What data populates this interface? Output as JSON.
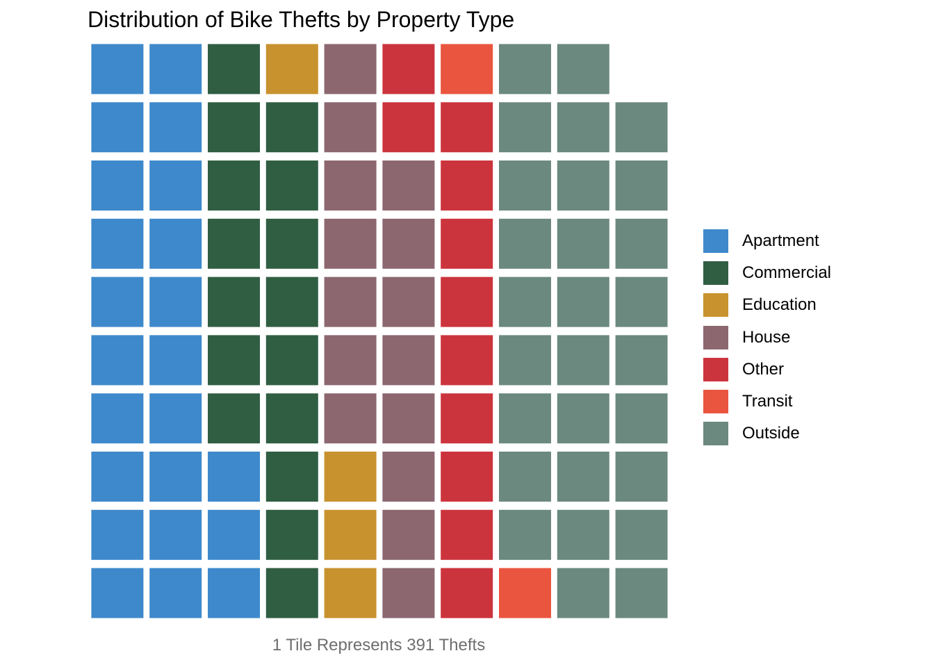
{
  "chart_data": {
    "type": "waffle",
    "title": "Distribution of Bike Thefts by Property Type",
    "caption": "1 Tile Represents 391 Thefts",
    "units_per_tile": 391,
    "columns": 10,
    "rows": 10,
    "fill_order": "column-wise, bottom to top, left to right",
    "legend_placement": "right",
    "grid": false,
    "categories": [
      {
        "name": "Apartment",
        "tiles": 23,
        "color": "#3E89CC"
      },
      {
        "name": "Commercial",
        "tiles": 16,
        "color": "#305E42"
      },
      {
        "name": "Education",
        "tiles": 4,
        "color": "#C8922E"
      },
      {
        "name": "House",
        "tiles": 15,
        "color": "#8C6770"
      },
      {
        "name": "Other",
        "tiles": 11,
        "color": "#CC343D"
      },
      {
        "name": "Transit",
        "tiles": 2,
        "color": "#EA553F"
      },
      {
        "name": "Outside",
        "tiles": 28,
        "color": "#6B897E"
      }
    ]
  }
}
